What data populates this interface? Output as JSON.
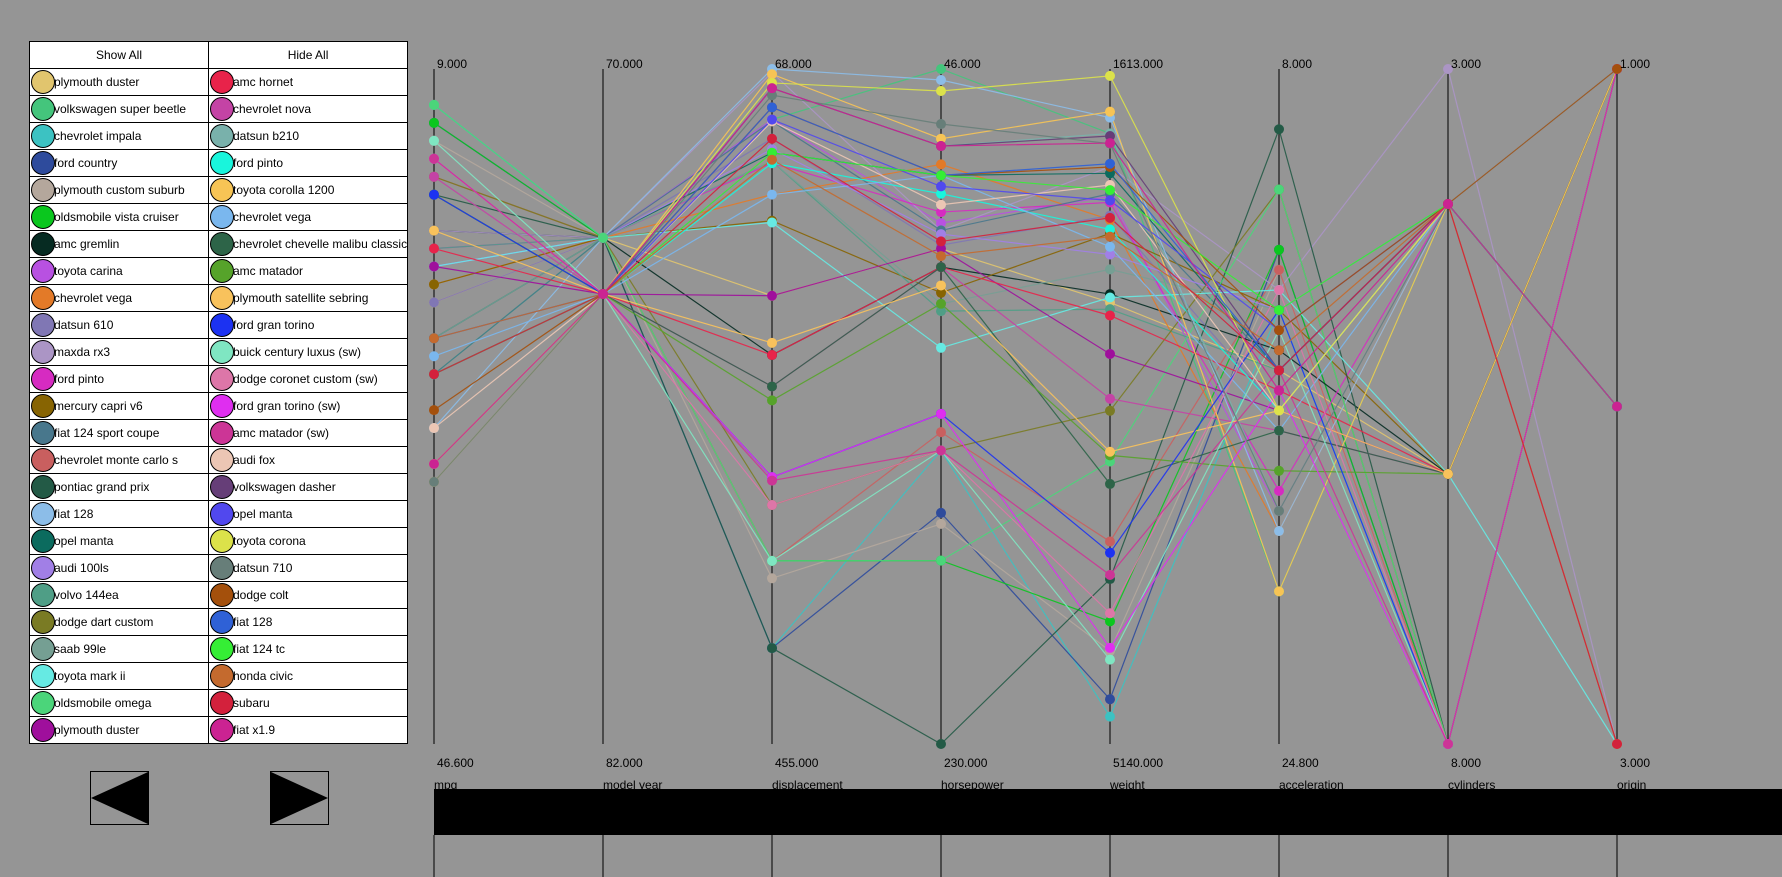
{
  "legend": {
    "show_all_label": "Show All",
    "hide_all_label": "Hide All",
    "left": [
      {
        "name": "plymouth duster",
        "color": "#e1c56e"
      },
      {
        "name": "volkswagen super beetle",
        "color": "#44c57c"
      },
      {
        "name": "chevrolet impala",
        "color": "#3cc2c2"
      },
      {
        "name": "ford country",
        "color": "#2e4b9c"
      },
      {
        "name": "plymouth custom suburb",
        "color": "#b4a79c"
      },
      {
        "name": "oldsmobile vista cruiser",
        "color": "#0ac71e"
      },
      {
        "name": "amc gremlin",
        "color": "#062b22"
      },
      {
        "name": "toyota carina",
        "color": "#b851e1"
      },
      {
        "name": "chevrolet vega",
        "color": "#e37a28"
      },
      {
        "name": "datsun 610",
        "color": "#8077b4"
      },
      {
        "name": "maxda rx3",
        "color": "#ab95c5"
      },
      {
        "name": "ford pinto",
        "color": "#d62bc1"
      },
      {
        "name": "mercury capri v6",
        "color": "#876402"
      },
      {
        "name": "fiat 124 sport coupe",
        "color": "#48778c"
      },
      {
        "name": "chevrolet monte carlo s",
        "color": "#c95f5f"
      },
      {
        "name": "pontiac grand prix",
        "color": "#235a46"
      },
      {
        "name": "fiat 128",
        "color": "#8cbde8"
      },
      {
        "name": "opel manta",
        "color": "#0b6b5e"
      },
      {
        "name": "audi 100ls",
        "color": "#a17fe6"
      },
      {
        "name": "volvo 144ea",
        "color": "#4f9e86"
      },
      {
        "name": "dodge dart custom",
        "color": "#7a7b24"
      },
      {
        "name": "saab 99le",
        "color": "#759f93"
      },
      {
        "name": "toyota mark ii",
        "color": "#66eae3"
      },
      {
        "name": "oldsmobile omega",
        "color": "#4bd57a"
      },
      {
        "name": "plymouth duster",
        "color": "#9f0f9c"
      }
    ],
    "right": [
      {
        "name": "amc hornet",
        "color": "#e8234a"
      },
      {
        "name": "chevrolet nova",
        "color": "#c443a5"
      },
      {
        "name": "datsun b210",
        "color": "#79b1ab"
      },
      {
        "name": "ford pinto",
        "color": "#19f5dc"
      },
      {
        "name": "toyota corolla 1200",
        "color": "#f7c455"
      },
      {
        "name": "chevrolet vega",
        "color": "#7ab7ee"
      },
      {
        "name": "chevrolet chevelle malibu classic",
        "color": "#2d6448"
      },
      {
        "name": "amc matador",
        "color": "#56a32a"
      },
      {
        "name": "plymouth satellite sebring",
        "color": "#f8c25c"
      },
      {
        "name": "ford gran torino",
        "color": "#1c32f2"
      },
      {
        "name": "buick century luxus (sw)",
        "color": "#7fe6c2"
      },
      {
        "name": "dodge coronet custom (sw)",
        "color": "#dd76a8"
      },
      {
        "name": "ford gran torino (sw)",
        "color": "#df2ef0"
      },
      {
        "name": "amc matador (sw)",
        "color": "#cc3596"
      },
      {
        "name": "audi fox",
        "color": "#ecc6b4"
      },
      {
        "name": "volkswagen dasher",
        "color": "#663e78"
      },
      {
        "name": "opel manta",
        "color": "#5148ee"
      },
      {
        "name": "toyota corona",
        "color": "#dce24a"
      },
      {
        "name": "datsun 710",
        "color": "#677e79"
      },
      {
        "name": "dodge colt",
        "color": "#a4500c"
      },
      {
        "name": "fiat 128",
        "color": "#2f61d6"
      },
      {
        "name": "fiat 124 tc",
        "color": "#35ee35"
      },
      {
        "name": "honda civic",
        "color": "#c46a2e"
      },
      {
        "name": "subaru",
        "color": "#d3213c"
      },
      {
        "name": "fiat x1.9",
        "color": "#cb2392"
      }
    ]
  },
  "nav": {
    "prev_icon": "left-triangle-icon",
    "next_icon": "right-triangle-icon"
  },
  "chart_data": {
    "type": "parallel-coordinates",
    "axes": [
      {
        "name": "mpg",
        "top": "9.000",
        "bottom": "46.600",
        "range": [
          9,
          46.6
        ]
      },
      {
        "name": "model year",
        "top": "70.000",
        "bottom": "82.000",
        "range": [
          70,
          82
        ]
      },
      {
        "name": "displacement",
        "top": "68.000",
        "bottom": "455.000",
        "range": [
          68,
          455
        ]
      },
      {
        "name": "horsepower",
        "top": "46.000",
        "bottom": "230.000",
        "range": [
          46,
          230
        ]
      },
      {
        "name": "weight",
        "top": "1613.000",
        "bottom": "5140.000",
        "range": [
          1613,
          5140
        ]
      },
      {
        "name": "acceleration",
        "top": "8.000",
        "bottom": "24.800",
        "range": [
          8,
          24.8
        ]
      },
      {
        "name": "cylinders",
        "top": "3.000",
        "bottom": "8.000",
        "range": [
          3,
          8
        ]
      },
      {
        "name": "origin",
        "top": "1.000",
        "bottom": "3.000",
        "range": [
          1,
          3
        ]
      }
    ],
    "records": [
      {
        "name": "plymouth duster",
        "color": "#e1c56e",
        "values": [
          22,
          73,
          198,
          95,
          2833,
          15.5,
          6,
          1
        ]
      },
      {
        "name": "volkswagen super beetle",
        "color": "#44c57c",
        "values": [
          26,
          73,
          97,
          46,
          1950,
          21,
          4,
          2
        ]
      },
      {
        "name": "chevrolet impala",
        "color": "#3cc2c2",
        "values": [
          11,
          73,
          400,
          150,
          4997,
          14,
          8,
          1
        ]
      },
      {
        "name": "ford country",
        "color": "#2e4b9c",
        "values": [
          12,
          73,
          400,
          167,
          4906,
          12.5,
          8,
          1
        ]
      },
      {
        "name": "plymouth custom suburb",
        "color": "#b4a79c",
        "values": [
          13,
          73,
          360,
          170,
          4654,
          13,
          8,
          1
        ]
      },
      {
        "name": "oldsmobile vista cruiser",
        "color": "#0ac71e",
        "values": [
          12,
          73,
          350,
          180,
          4499,
          12.5,
          8,
          1
        ]
      },
      {
        "name": "amc gremlin",
        "color": "#062b22",
        "values": [
          18,
          73,
          232,
          100,
          2789,
          15,
          6,
          1
        ]
      },
      {
        "name": "toyota carina",
        "color": "#b851e1",
        "values": [
          20,
          73,
          97,
          88,
          2279,
          19,
          4,
          3
        ]
      },
      {
        "name": "chevrolet vega",
        "color": "#e37a28",
        "values": [
          21,
          73,
          140,
          72,
          2401,
          19.5,
          4,
          1
        ]
      },
      {
        "name": "datsun 610",
        "color": "#8077b4",
        "values": [
          22,
          73,
          108,
          94,
          2379,
          16.5,
          4,
          3
        ]
      },
      {
        "name": "maxda rx3",
        "color": "#ab95c5",
        "values": [
          18,
          73,
          70,
          90,
          2124,
          13.5,
          3,
          3
        ]
      },
      {
        "name": "ford pinto",
        "color": "#d62bc1",
        "values": [
          19,
          73,
          122,
          85,
          2310,
          18.5,
          4,
          1
        ]
      },
      {
        "name": "mercury capri v6",
        "color": "#876402",
        "values": [
          21,
          73,
          155,
          107,
          2472,
          14,
          6,
          1
        ]
      },
      {
        "name": "fiat 124 sport coupe",
        "color": "#48778c",
        "values": [
          26,
          73,
          98,
          90,
          2265,
          15.5,
          4,
          2
        ]
      },
      {
        "name": "chevrolet monte carlo s",
        "color": "#c95f5f",
        "values": [
          15,
          73,
          350,
          145,
          4082,
          13,
          8,
          1
        ]
      },
      {
        "name": "pontiac grand prix",
        "color": "#235a46",
        "values": [
          16,
          73,
          400,
          230,
          4278,
          9.5,
          8,
          1
        ]
      },
      {
        "name": "fiat 128",
        "color": "#8cbde8",
        "values": [
          29,
          73,
          68,
          49,
          1867,
          19.5,
          4,
          2
        ]
      },
      {
        "name": "opel manta",
        "color": "#0b6b5e",
        "values": [
          24,
          73,
          116,
          75,
          2158,
          15.5,
          4,
          2
        ]
      },
      {
        "name": "audi 100ls",
        "color": "#a17fe6",
        "values": [
          20,
          73,
          114,
          91,
          2582,
          14,
          4,
          2
        ]
      },
      {
        "name": "volvo 144ea",
        "color": "#4f9e86",
        "values": [
          19,
          73,
          121,
          112,
          2868,
          15.5,
          4,
          2
        ]
      },
      {
        "name": "dodge dart custom",
        "color": "#7a7b24",
        "values": [
          15,
          73,
          318,
          150,
          3399,
          11,
          8,
          1
        ]
      },
      {
        "name": "saab 99le",
        "color": "#759f93",
        "values": [
          24,
          73,
          121,
          110,
          2660,
          14,
          4,
          2
        ]
      },
      {
        "name": "toyota mark ii",
        "color": "#66eae3",
        "values": [
          20,
          73,
          156,
          122,
          2807,
          13.5,
          6,
          3
        ]
      },
      {
        "name": "oldsmobile omega",
        "color": "#4bd57a",
        "values": [
          11,
          73,
          350,
          180,
          3664,
          11,
          8,
          1
        ]
      },
      {
        "name": "plymouth duster",
        "color": "#9f0f9c",
        "values": [
          20,
          74,
          198,
          95,
          3102,
          16.5,
          6,
          1
        ]
      },
      {
        "name": "amc hornet",
        "color": "#e8234a",
        "values": [
          19,
          74,
          232,
          100,
          2901,
          16,
          6,
          1
        ]
      },
      {
        "name": "chevrolet nova",
        "color": "#c443a5",
        "values": [
          15,
          74,
          250,
          100,
          3336,
          17,
          6,
          1
        ]
      },
      {
        "name": "datsun b210",
        "color": "#79b1ab",
        "values": [
          31,
          74,
          79,
          67,
          1950,
          19,
          4,
          3
        ]
      },
      {
        "name": "ford pinto",
        "color": "#19f5dc",
        "values": [
          26,
          74,
          122,
          80,
          2451,
          16.5,
          4,
          1
        ]
      },
      {
        "name": "toyota corolla 1200",
        "color": "#f7c455",
        "values": [
          32,
          74,
          71,
          65,
          1836,
          21,
          4,
          3
        ]
      },
      {
        "name": "chevrolet vega",
        "color": "#7ab7ee",
        "values": [
          25,
          74,
          140,
          75,
          2542,
          17,
          4,
          1
        ]
      },
      {
        "name": "chevrolet chevelle malibu classic",
        "color": "#2d6448",
        "values": [
          16,
          74,
          250,
          100,
          3781,
          17,
          6,
          1
        ]
      },
      {
        "name": "amc matador",
        "color": "#56a32a",
        "values": [
          16,
          74,
          258,
          110,
          3632,
          18,
          6,
          1
        ]
      },
      {
        "name": "plymouth satellite sebring",
        "color": "#f8c25c",
        "values": [
          18,
          74,
          225,
          105,
          3613,
          16.5,
          6,
          1
        ]
      },
      {
        "name": "ford gran torino",
        "color": "#1c32f2",
        "values": [
          16,
          74,
          302,
          140,
          4141,
          14,
          8,
          1
        ]
      },
      {
        "name": "buick century luxus (sw)",
        "color": "#7fe6c2",
        "values": [
          13,
          74,
          350,
          150,
          4699,
          14.5,
          8,
          1
        ]
      },
      {
        "name": "dodge coronet custom (sw)",
        "color": "#dd76a8",
        "values": [
          14,
          74,
          318,
          150,
          4457,
          13.5,
          8,
          1
        ]
      },
      {
        "name": "ford gran torino (sw)",
        "color": "#df2ef0",
        "values": [
          14,
          74,
          302,
          140,
          4638,
          16,
          8,
          1
        ]
      },
      {
        "name": "amc matador (sw)",
        "color": "#cc3596",
        "values": [
          14,
          74,
          304,
          150,
          4257,
          15.5,
          8,
          1
        ]
      },
      {
        "name": "audi fox",
        "color": "#ecc6b4",
        "values": [
          29,
          74,
          98,
          83,
          2219,
          16.5,
          4,
          2
        ]
      },
      {
        "name": "volkswagen dasher",
        "color": "#663e78",
        "values": [
          26,
          74,
          79,
          67,
          1963,
          15.5,
          4,
          2
        ]
      },
      {
        "name": "opel manta",
        "color": "#5148ee",
        "values": [
          26,
          74,
          97,
          78,
          2300,
          14.5,
          4,
          2
        ]
      },
      {
        "name": "toyota corona",
        "color": "#dce24a",
        "values": [
          31,
          74,
          76,
          52,
          1649,
          16.5,
          4,
          3
        ]
      },
      {
        "name": "datsun 710",
        "color": "#677e79",
        "values": [
          32,
          74,
          83,
          61,
          2003,
          19,
          4,
          3
        ]
      },
      {
        "name": "dodge colt",
        "color": "#a4500c",
        "values": [
          28,
          74,
          90,
          75,
          2125,
          14.5,
          4,
          1
        ]
      },
      {
        "name": "fiat 128",
        "color": "#2f61d6",
        "values": [
          24,
          74,
          90,
          75,
          2108,
          15.5,
          4,
          2
        ]
      },
      {
        "name": "fiat 124 tc",
        "color": "#35ee35",
        "values": [
          26,
          74,
          116,
          75,
          2246,
          14,
          4,
          2
        ]
      },
      {
        "name": "honda civic",
        "color": "#c46a2e",
        "values": [
          24,
          74,
          120,
          97,
          2489,
          15,
          4,
          3
        ]
      },
      {
        "name": "subaru",
        "color": "#d3213c",
        "values": [
          26,
          74,
          108,
          93,
          2391,
          15.5,
          4,
          3
        ]
      },
      {
        "name": "fiat x1.9",
        "color": "#cb2392",
        "values": [
          31,
          74,
          79,
          67,
          2000,
          16,
          4,
          2
        ]
      }
    ]
  }
}
